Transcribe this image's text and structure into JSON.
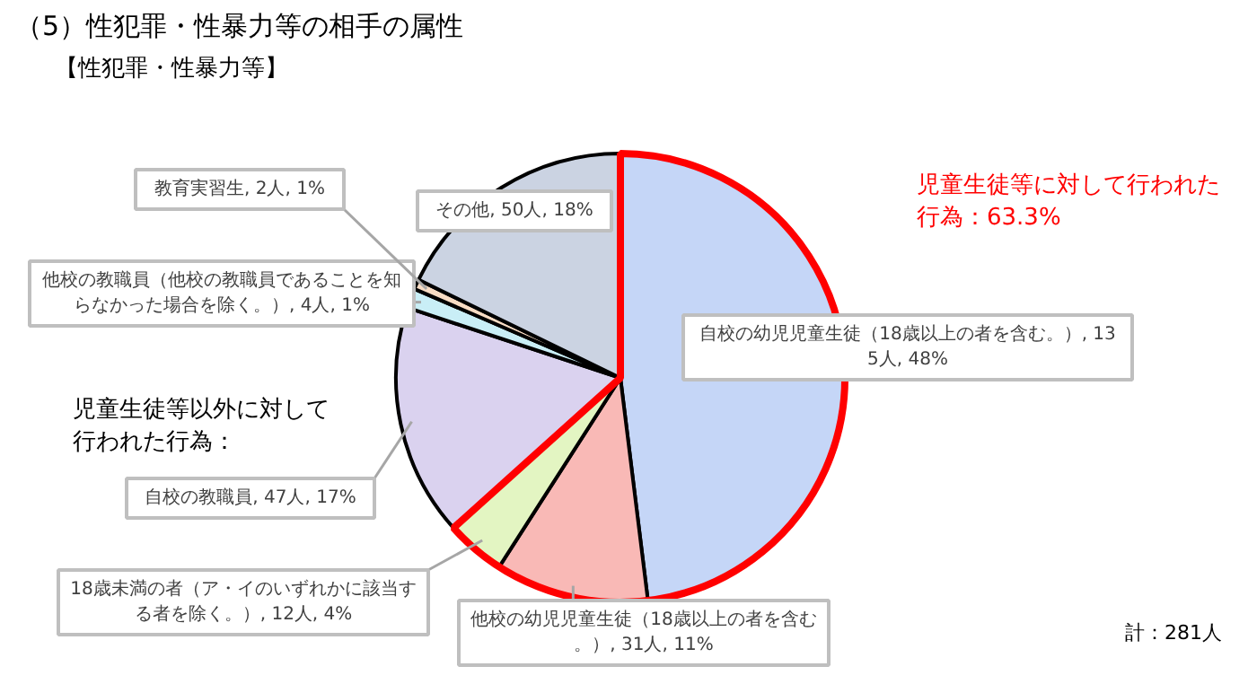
{
  "chart_data": {
    "type": "pie",
    "title": "（5）性犯罪・性暴力等の相手の属性",
    "subtitle": "【性犯罪・性暴力等】",
    "categories": [
      "自校の幼児児童生徒（18歳以上の者を含む。）",
      "他校の幼児児童生徒（18歳以上の者を含む。）",
      "18歳未満の者（ア・イのいずれかに該当する者を除く。）",
      "自校の教職員",
      "他校の教職員（他校の教職員であることを知らなかった場合を除く。）",
      "教育実習生",
      "その他"
    ],
    "values": [
      135,
      31,
      12,
      47,
      4,
      2,
      50
    ],
    "value_labels": [
      "135人, 48%",
      "31人, 11%",
      "12人, 4%",
      "47人, 17%",
      "4人, 1%",
      "2人, 1%",
      "50人, 18%"
    ],
    "colors": [
      "#c5d6f7",
      "#f9b9b6",
      "#e3f5c2",
      "#dad2ef",
      "#c9eef6",
      "#f8dcc4",
      "#cbd3e2"
    ],
    "annotations": [
      "児童生徒等に対して行われた行為：63.3%",
      "児童生徒等以外に対して行われた行為：",
      "計：281人"
    ]
  }
}
